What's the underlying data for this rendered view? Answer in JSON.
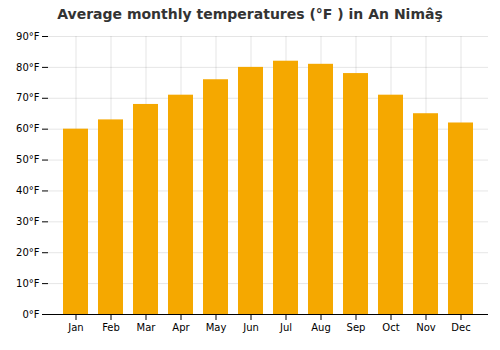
{
  "chart_data": {
    "type": "bar",
    "title": "Average monthly temperatures (°F ) in An Nimâş",
    "categories": [
      "Jan",
      "Feb",
      "Mar",
      "Apr",
      "May",
      "Jun",
      "Jul",
      "Aug",
      "Sep",
      "Oct",
      "Nov",
      "Dec"
    ],
    "values": [
      60,
      63,
      68,
      71,
      76,
      80,
      82,
      81,
      78,
      71,
      65,
      62
    ],
    "color": "#F5A800",
    "ylim": [
      0,
      90
    ],
    "yticks": [
      {
        "value": 0,
        "label": "0°F"
      },
      {
        "value": 10,
        "label": "10°F"
      },
      {
        "value": 20,
        "label": "20°F"
      },
      {
        "value": 30,
        "label": "30°F"
      },
      {
        "value": 40,
        "label": "40°F"
      },
      {
        "value": 50,
        "label": "50°F"
      },
      {
        "value": 60,
        "label": "60°F"
      },
      {
        "value": 70,
        "label": "70°F"
      },
      {
        "value": 80,
        "label": "80°F"
      },
      {
        "value": 90,
        "label": "90°F"
      }
    ],
    "grid": true
  }
}
